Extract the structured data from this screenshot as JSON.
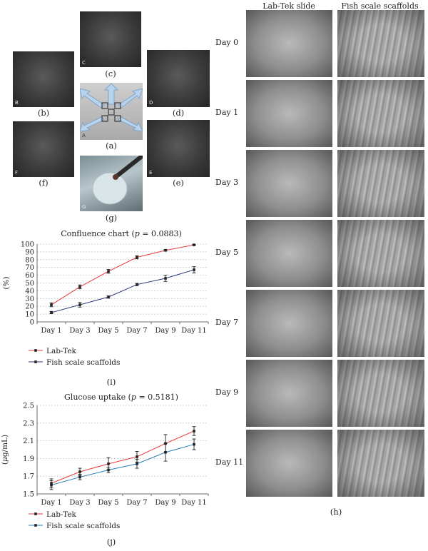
{
  "panel_labels": {
    "a": "(a)",
    "b": "(b)",
    "c": "(c)",
    "d": "(d)",
    "e": "(e)",
    "f": "(f)",
    "g": "(g)",
    "h": "(h)",
    "i": "(i)",
    "j": "(j)"
  },
  "photo_tags": {
    "A": "A",
    "B": "B",
    "C": "C",
    "D": "D",
    "E": "E",
    "F": "F",
    "G": "G"
  },
  "sem_grid": {
    "col_headers": [
      "Lab-Tek slide",
      "Fish scale scaffolds"
    ],
    "days": [
      "Day 0",
      "Day 1",
      "Day 3",
      "Day 5",
      "Day 7",
      "Day 9",
      "Day 11"
    ]
  },
  "chart_data": [
    {
      "type": "line",
      "title": "Confluence chart (p = 0.0883)",
      "title_parts": {
        "pre": "Confluence chart (",
        "p": "p",
        "post": " = 0.0883)"
      },
      "ylabel": "(%)",
      "ylim": [
        0,
        100
      ],
      "yticks": [
        "0",
        "10",
        "20",
        "30",
        "40",
        "50",
        "60",
        "70",
        "80",
        "90",
        "100"
      ],
      "categories": [
        "Day 1",
        "Day 3",
        "Day 5",
        "Day 7",
        "Day 9",
        "Day 11"
      ],
      "series": [
        {
          "name": "Lab-Tek",
          "color": "#e8393c",
          "values": [
            22,
            45,
            65,
            83,
            92,
            99
          ],
          "errors": [
            2.5,
            2.5,
            2.5,
            2,
            1,
            0.5
          ]
        },
        {
          "name": "Fish scale scaffolds",
          "color": "#2b3a7a",
          "values": [
            12,
            22,
            32,
            48,
            56,
            67
          ],
          "errors": [
            1.5,
            3,
            1.5,
            1.5,
            4,
            4
          ]
        }
      ],
      "grid": true,
      "legend": "bottom-left"
    },
    {
      "type": "line",
      "title": "Glucose uptake (p = 0.5181)",
      "title_parts": {
        "pre": "Glucose uptake (",
        "p": "p",
        "post": " = 0.5181)"
      },
      "ylabel": "(μg/mL)",
      "ylabel_parts": {
        "pre": "(",
        "mu": "μ",
        "post": "g/mL)"
      },
      "ylim": [
        1.5,
        2.5
      ],
      "yticks": [
        "1.5",
        "1.7",
        "1.9",
        "2.1",
        "2.3",
        "2.5"
      ],
      "categories": [
        "Day 1",
        "Day 3",
        "Day 5",
        "Day 7",
        "Day 9",
        "Day 11"
      ],
      "series": [
        {
          "name": "Lab-Tek",
          "color": "#e8393c",
          "values": [
            1.62,
            1.75,
            1.84,
            1.92,
            2.07,
            2.21
          ],
          "errors": [
            0.05,
            0.04,
            0.07,
            0.06,
            0.1,
            0.05
          ]
        },
        {
          "name": "Fish scale scaffolds",
          "color": "#2a7fb8",
          "values": [
            1.6,
            1.69,
            1.77,
            1.84,
            1.97,
            2.06
          ],
          "errors": [
            0.05,
            0.03,
            0.03,
            0.05,
            0.1,
            0.06
          ]
        }
      ],
      "grid": true,
      "legend": "bottom-left"
    }
  ]
}
